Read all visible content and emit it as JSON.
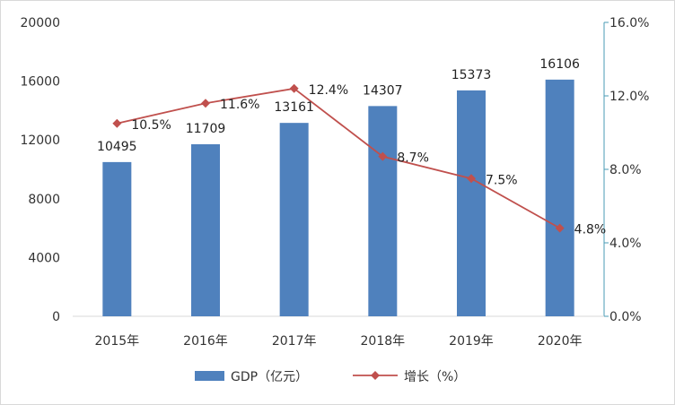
{
  "chart_data": {
    "type": "bar",
    "categories": [
      "2015年",
      "2016年",
      "2017年",
      "2018年",
      "2019年",
      "2020年"
    ],
    "series": [
      {
        "name": "GDP（亿元）",
        "type": "bar",
        "axis": "left",
        "color": "#4F81BD",
        "values": [
          10495,
          11709,
          13161,
          14307,
          15373,
          16106
        ],
        "labels": [
          "10495",
          "11709",
          "13161",
          "14307",
          "15373",
          "16106"
        ]
      },
      {
        "name": "增长（%）",
        "type": "line",
        "axis": "right",
        "color": "#C0504D",
        "marker": "diamond",
        "values": [
          10.5,
          11.6,
          12.4,
          8.7,
          7.5,
          4.8
        ],
        "labels": [
          "10.5%",
          "11.6%",
          "12.4%",
          "8.7%",
          "7.5%",
          "4.8%"
        ]
      }
    ],
    "y_left": {
      "ylim": [
        0,
        20000
      ],
      "ticks": [
        "0",
        "4000",
        "8000",
        "12000",
        "16000",
        "20000"
      ]
    },
    "y_right": {
      "ylim": [
        0,
        16
      ],
      "ticks": [
        "0.0%",
        "4.0%",
        "8.0%",
        "12.0%",
        "16.0%"
      ],
      "axis_color": "#4A9BB5"
    },
    "grid": false,
    "legend_position": "bottom"
  }
}
